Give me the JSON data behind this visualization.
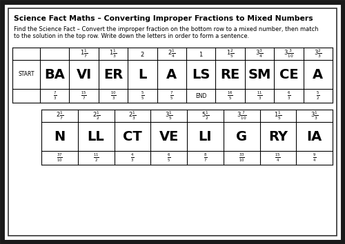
{
  "title": "Science Fact Maths – Converting Improper Fractions to Mixed Numbers",
  "instruction_line1": "Find the Science Fact – Convert the improper fraction on the bottom row to a mixed number, then match",
  "instruction_line2": "to the solution in the top row. Write down the letters in order to form a sentence.",
  "bg_color": "#ffffff",
  "table1_cols": [
    {
      "mixed": "",
      "letter": "BA",
      "fraction": "\\frac{7}{3}",
      "is_start": true
    },
    {
      "mixed": "1\\frac{1}{7}",
      "letter": "VI",
      "fraction": "\\frac{15}{7}"
    },
    {
      "mixed": "1\\frac{1}{3}",
      "letter": "ER",
      "fraction": "\\frac{10}{3}"
    },
    {
      "mixed": "2",
      "letter": "L",
      "fraction": "\\frac{5}{5}"
    },
    {
      "mixed": "2\\frac{1}{4}",
      "letter": "A",
      "fraction": "\\frac{7}{5}"
    },
    {
      "mixed": "1",
      "letter": "LS",
      "fraction": "END"
    },
    {
      "mixed": "1\\frac{2}{5}",
      "letter": "RE",
      "fraction": "\\frac{16}{5}"
    },
    {
      "mixed": "3\\frac{3}{4}",
      "letter": "SM",
      "fraction": "\\frac{11}{3}"
    },
    {
      "mixed": "3\\frac{3}{10}",
      "letter": "CE",
      "fraction": "\\frac{6}{3}"
    },
    {
      "mixed": "3\\frac{2}{3}",
      "letter": "A",
      "fraction": "\\frac{5}{2}"
    }
  ],
  "table2_cols": [
    {
      "mixed": "2\\frac{1}{7}",
      "letter": "N",
      "fraction": "\\frac{37}{10}"
    },
    {
      "mixed": "2\\frac{1}{2}",
      "letter": "LL",
      "fraction": "\\frac{11}{2}"
    },
    {
      "mixed": "2\\frac{1}{3}",
      "letter": "CT",
      "fraction": "\\frac{4}{3}"
    },
    {
      "mixed": "3\\frac{1}{5}",
      "letter": "VE",
      "fraction": "\\frac{6}{5}"
    },
    {
      "mixed": "5\\frac{1}{2}",
      "letter": "LI",
      "fraction": "\\frac{8}{7}"
    },
    {
      "mixed": "3\\frac{7}{10}",
      "letter": "G",
      "fraction": "\\frac{33}{10}"
    },
    {
      "mixed": "1\\frac{1}{5}",
      "letter": "RY",
      "fraction": "\\frac{15}{4}"
    },
    {
      "mixed": "3\\frac{1}{3}",
      "letter": "IA",
      "fraction": "\\frac{9}{4}"
    }
  ]
}
